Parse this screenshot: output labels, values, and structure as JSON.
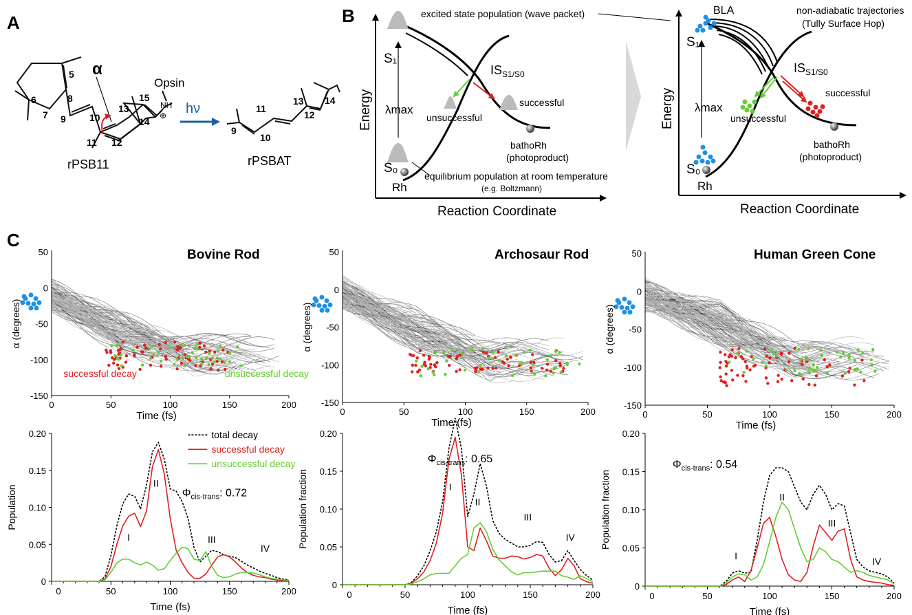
{
  "panels": {
    "A": "A",
    "B": "B",
    "C": "C"
  },
  "panel_a": {
    "alpha": "α",
    "opsin": "Opsin",
    "nh": "NH",
    "plus": "⊕",
    "hv": "hν",
    "left_name": "rPSB11",
    "right_name": "rPSBAT",
    "numbers_left": [
      "5",
      "6",
      "7",
      "8",
      "9",
      "10",
      "11",
      "12",
      "13",
      "14",
      "15"
    ],
    "numbers_right": [
      "9",
      "10",
      "11",
      "12",
      "13",
      "14"
    ]
  },
  "panel_b": {
    "left": {
      "s1": "S₁",
      "s0": "S₀",
      "rh": "Rh",
      "lambda": "λmax",
      "energy": "Energy",
      "reaction": "Reaction Coordinate",
      "wave_packet": "excited state population (wave packet)",
      "is": "IS",
      "is_sub": "S1/S0",
      "unsuccessful": "unsuccessful",
      "successful": "successful",
      "batho": "bathoRh",
      "photoproduct": "(photoproduct)",
      "equilibrium": "equilibrium population at room temperature",
      "boltzmann": "(e.g. Boltzmann)"
    },
    "right": {
      "s1": "S₁",
      "s0": "S₀",
      "rh": "Rh",
      "lambda": "λmax",
      "energy": "Energy",
      "reaction": "Reaction Coordinate",
      "bla": "BLA",
      "nonadiabatic": "non-adiabatic trajectories",
      "tully": "(Tully Surface Hop)",
      "is": "IS",
      "is_sub": "S1/S0",
      "unsuccessful": "unsuccessful",
      "successful": "successful",
      "batho": "bathoRh",
      "photoproduct": "(photoproduct)"
    },
    "colors": {
      "blue": "#1e90e6",
      "green": "#66cc33",
      "red": "#e02020",
      "gray": "#bbbbbb"
    }
  },
  "chart_data": [
    {
      "type": "line",
      "title": "Bovine Rod",
      "xlabel": "Time (fs)",
      "ylabel": "α (degrees)",
      "xlim": [
        0,
        200
      ],
      "ylim": [
        -150,
        50
      ],
      "xticks": [
        0,
        50,
        100,
        150,
        200
      ],
      "yticks": [
        50,
        0,
        -50,
        -100,
        -150
      ],
      "annotations": [
        "successful decay",
        "unsuccessful decay"
      ],
      "trajectory_band": {
        "start": -10,
        "mid_time": 60,
        "mid": -65,
        "end_time": 120,
        "end": -95
      },
      "successful_points": {
        "t_range": [
          45,
          150
        ],
        "alpha_range": [
          -115,
          -75
        ]
      },
      "unsuccessful_points": {
        "t_range": [
          50,
          175
        ],
        "alpha_range": [
          -110,
          -75
        ]
      }
    },
    {
      "type": "line",
      "title": "Archosaur Rod",
      "xlabel": "Time (fs)",
      "ylabel": "α (degrees)",
      "xlim": [
        0,
        200
      ],
      "ylim": [
        -150,
        50
      ],
      "xticks": [
        0,
        50,
        100,
        150,
        200
      ],
      "yticks": [
        50,
        0,
        -50,
        -100,
        -150
      ],
      "trajectory_band": {
        "start": -5,
        "mid_time": 60,
        "mid": -55,
        "end_time": 120,
        "end": -95
      },
      "successful_points": {
        "t_range": [
          55,
          185
        ],
        "alpha_range": [
          -110,
          -80
        ]
      },
      "unsuccessful_points": {
        "t_range": [
          60,
          195
        ],
        "alpha_range": [
          -115,
          -75
        ]
      }
    },
    {
      "type": "line",
      "title": "Human Green Cone",
      "xlabel": "Time (fs)",
      "ylabel": "α (degrees)",
      "xlim": [
        0,
        200
      ],
      "ylim": [
        -150,
        50
      ],
      "xticks": [
        0,
        50,
        100,
        150,
        200
      ],
      "yticks": [
        50,
        0,
        -50,
        -100,
        -150
      ],
      "trajectory_band": {
        "start": -5,
        "mid_time": 60,
        "mid": -45,
        "end_time": 120,
        "end": -90
      },
      "successful_points": {
        "t_range": [
          60,
          180
        ],
        "alpha_range": [
          -125,
          -75
        ]
      },
      "unsuccessful_points": {
        "t_range": [
          65,
          185
        ],
        "alpha_range": [
          -110,
          -75
        ]
      }
    },
    {
      "type": "line",
      "xlabel": "Time (fs)",
      "ylabel": "Population",
      "xlim": [
        0,
        200
      ],
      "ylim": [
        0,
        0.2
      ],
      "xticks": [
        0,
        50,
        100,
        150,
        200
      ],
      "yticks": [
        0,
        0.05,
        0.1,
        0.15,
        0.2
      ],
      "ytick_labels": [
        "0",
        "0.05",
        "0.10",
        "0.15",
        "0.20"
      ],
      "legend": [
        "total decay",
        "successful decay",
        "unsuccessful decay"
      ],
      "quantum_yield": {
        "label": "Φ",
        "sub": "cis-trans",
        "value": ": 0.72"
      },
      "peak_labels": [
        {
          "label": "I",
          "t": 65,
          "y": 0.055
        },
        {
          "label": "II",
          "t": 88,
          "y": 0.128
        },
        {
          "label": "III",
          "t": 135,
          "y": 0.052
        },
        {
          "label": "IV",
          "t": 180,
          "y": 0.04
        }
      ],
      "series": [
        {
          "name": "total decay",
          "x": [
            0,
            40,
            45,
            50,
            55,
            60,
            65,
            70,
            75,
            80,
            85,
            90,
            95,
            100,
            105,
            110,
            115,
            120,
            125,
            130,
            135,
            140,
            145,
            150,
            155,
            160,
            165,
            170,
            175,
            180,
            185,
            190,
            195,
            200
          ],
          "values": [
            0,
            0,
            0.006,
            0.035,
            0.075,
            0.105,
            0.118,
            0.115,
            0.098,
            0.13,
            0.175,
            0.188,
            0.165,
            0.125,
            0.122,
            0.108,
            0.085,
            0.046,
            0.026,
            0.034,
            0.042,
            0.04,
            0.036,
            0.034,
            0.032,
            0.027,
            0.022,
            0.018,
            0.014,
            0.011,
            0.008,
            0.005,
            0.003,
            0.002
          ]
        },
        {
          "name": "successful decay",
          "x": [
            0,
            40,
            45,
            50,
            55,
            60,
            65,
            70,
            75,
            80,
            85,
            90,
            95,
            100,
            105,
            110,
            115,
            120,
            125,
            130,
            135,
            140,
            145,
            150,
            155,
            160,
            165,
            170,
            175,
            180,
            185,
            190,
            195,
            200
          ],
          "values": [
            0,
            0,
            0.003,
            0.02,
            0.05,
            0.075,
            0.088,
            0.092,
            0.074,
            0.095,
            0.155,
            0.178,
            0.145,
            0.085,
            0.042,
            0.025,
            0.012,
            0.004,
            0.004,
            0.01,
            0.022,
            0.033,
            0.036,
            0.033,
            0.026,
            0.018,
            0.012,
            0.008,
            0.006,
            0.005,
            0.003,
            0.002,
            0.001,
            0.001
          ]
        },
        {
          "name": "unsuccessful decay",
          "x": [
            0,
            40,
            45,
            50,
            55,
            60,
            65,
            70,
            75,
            80,
            85,
            90,
            95,
            100,
            105,
            110,
            115,
            120,
            125,
            130,
            135,
            140,
            145,
            150,
            155,
            160,
            165,
            170,
            175,
            180,
            185,
            190,
            195,
            200
          ],
          "values": [
            0,
            0,
            0.002,
            0.012,
            0.025,
            0.03,
            0.03,
            0.025,
            0.022,
            0.026,
            0.022,
            0.015,
            0.017,
            0.028,
            0.038,
            0.046,
            0.044,
            0.03,
            0.028,
            0.04,
            0.02,
            0.008,
            0.005,
            0.006,
            0.01,
            0.012,
            0.012,
            0.011,
            0.009,
            0.006,
            0.004,
            0.003,
            0.002,
            0.001
          ]
        }
      ]
    },
    {
      "type": "line",
      "xlabel": "Time (fs)",
      "ylabel": "Population fraction",
      "xlim": [
        0,
        200
      ],
      "ylim": [
        0,
        0.2
      ],
      "xticks": [
        0,
        50,
        100,
        150,
        200
      ],
      "yticks": [
        0,
        0.05,
        0.1,
        0.15,
        0.2
      ],
      "ytick_labels": [
        "0",
        "0.05",
        "0.10",
        "0.15",
        "0.20"
      ],
      "quantum_yield": {
        "label": "Φ",
        "sub": "cis-trans",
        "value": ": 0.65"
      },
      "peak_labels": [
        {
          "label": "I",
          "t": 86,
          "y": 0.125
        },
        {
          "label": "II",
          "t": 108,
          "y": 0.105
        },
        {
          "label": "III",
          "t": 148,
          "y": 0.085
        },
        {
          "label": "IV",
          "t": 182,
          "y": 0.058
        }
      ],
      "series": [
        {
          "name": "total decay",
          "x": [
            0,
            50,
            55,
            60,
            65,
            70,
            75,
            80,
            85,
            90,
            95,
            100,
            105,
            110,
            115,
            120,
            125,
            130,
            135,
            140,
            145,
            150,
            155,
            160,
            165,
            170,
            175,
            180,
            185,
            190,
            195,
            200
          ],
          "values": [
            0,
            0,
            0.003,
            0.012,
            0.025,
            0.045,
            0.07,
            0.11,
            0.18,
            0.22,
            0.18,
            0.09,
            0.12,
            0.16,
            0.13,
            0.085,
            0.068,
            0.06,
            0.055,
            0.05,
            0.05,
            0.052,
            0.057,
            0.056,
            0.04,
            0.03,
            0.032,
            0.045,
            0.032,
            0.02,
            0.012,
            0.006
          ]
        },
        {
          "name": "successful decay",
          "x": [
            0,
            50,
            55,
            60,
            65,
            70,
            75,
            80,
            85,
            90,
            95,
            100,
            105,
            110,
            115,
            120,
            125,
            130,
            135,
            140,
            145,
            150,
            155,
            160,
            165,
            170,
            175,
            180,
            185,
            190,
            195,
            200
          ],
          "values": [
            0,
            0,
            0.002,
            0.008,
            0.017,
            0.032,
            0.055,
            0.095,
            0.165,
            0.195,
            0.145,
            0.05,
            0.045,
            0.075,
            0.058,
            0.038,
            0.035,
            0.035,
            0.038,
            0.037,
            0.034,
            0.036,
            0.04,
            0.038,
            0.022,
            0.012,
            0.02,
            0.035,
            0.025,
            0.008,
            0.004,
            0.002
          ]
        },
        {
          "name": "unsuccessful decay",
          "x": [
            0,
            50,
            55,
            60,
            65,
            70,
            75,
            80,
            85,
            90,
            95,
            100,
            105,
            110,
            115,
            120,
            125,
            130,
            135,
            140,
            145,
            150,
            155,
            160,
            165,
            170,
            175,
            180,
            185,
            190,
            195,
            200
          ],
          "values": [
            0,
            0,
            0.001,
            0.004,
            0.008,
            0.013,
            0.015,
            0.015,
            0.015,
            0.025,
            0.035,
            0.04,
            0.075,
            0.082,
            0.07,
            0.047,
            0.033,
            0.025,
            0.017,
            0.013,
            0.016,
            0.016,
            0.017,
            0.018,
            0.018,
            0.018,
            0.012,
            0.01,
            0.007,
            0.012,
            0.008,
            0.004
          ]
        }
      ]
    },
    {
      "type": "line",
      "xlabel": "Time (fs)",
      "ylabel": "Population fraction",
      "xlim": [
        0,
        200
      ],
      "ylim": [
        0,
        0.2
      ],
      "xticks": [
        0,
        50,
        100,
        150,
        200
      ],
      "yticks": [
        0,
        0.05,
        0.1,
        0.15,
        0.2
      ],
      "ytick_labels": [
        "0",
        "0.05",
        "0.10",
        "0.15",
        "0.20"
      ],
      "quantum_yield": {
        "label": "Φ",
        "sub": "cis-trans",
        "value": ": 0.54"
      },
      "peak_labels": [
        {
          "label": "I",
          "t": 73,
          "y": 0.035
        },
        {
          "label": "II",
          "t": 110,
          "y": 0.112
        },
        {
          "label": "III",
          "t": 150,
          "y": 0.078
        },
        {
          "label": "IV",
          "t": 186,
          "y": 0.028
        }
      ],
      "series": [
        {
          "name": "total decay",
          "x": [
            0,
            60,
            65,
            70,
            75,
            80,
            85,
            90,
            95,
            100,
            105,
            110,
            115,
            120,
            125,
            130,
            135,
            140,
            145,
            150,
            155,
            160,
            165,
            170,
            175,
            180,
            185,
            190,
            195,
            200
          ],
          "values": [
            0,
            0,
            0.006,
            0.017,
            0.02,
            0.017,
            0.018,
            0.06,
            0.11,
            0.145,
            0.155,
            0.155,
            0.15,
            0.13,
            0.11,
            0.1,
            0.12,
            0.132,
            0.12,
            0.1,
            0.108,
            0.105,
            0.07,
            0.035,
            0.025,
            0.02,
            0.018,
            0.016,
            0.012,
            0.004
          ]
        },
        {
          "name": "successful decay",
          "x": [
            0,
            60,
            65,
            70,
            75,
            80,
            85,
            90,
            95,
            100,
            105,
            110,
            115,
            120,
            125,
            130,
            135,
            140,
            145,
            150,
            155,
            160,
            165,
            170,
            175,
            180,
            185,
            190,
            195,
            200
          ],
          "values": [
            0,
            0,
            0.002,
            0.008,
            0.012,
            0.006,
            0.02,
            0.05,
            0.082,
            0.09,
            0.065,
            0.035,
            0.015,
            0.008,
            0.006,
            0.018,
            0.052,
            0.08,
            0.07,
            0.06,
            0.072,
            0.075,
            0.035,
            0.012,
            0.008,
            0.006,
            0.005,
            0.004,
            0.002,
            0.001
          ]
        },
        {
          "name": "unsuccessful decay",
          "x": [
            0,
            60,
            65,
            70,
            75,
            80,
            85,
            90,
            95,
            100,
            105,
            110,
            115,
            120,
            125,
            130,
            135,
            140,
            145,
            150,
            155,
            160,
            165,
            170,
            175,
            180,
            185,
            190,
            195,
            200
          ],
          "values": [
            0,
            0,
            0.004,
            0.012,
            0.016,
            0.015,
            0.008,
            0.012,
            0.028,
            0.058,
            0.09,
            0.11,
            0.1,
            0.075,
            0.05,
            0.032,
            0.035,
            0.05,
            0.045,
            0.035,
            0.032,
            0.025,
            0.018,
            0.02,
            0.018,
            0.014,
            0.012,
            0.01,
            0.008,
            0.003
          ]
        }
      ]
    }
  ]
}
